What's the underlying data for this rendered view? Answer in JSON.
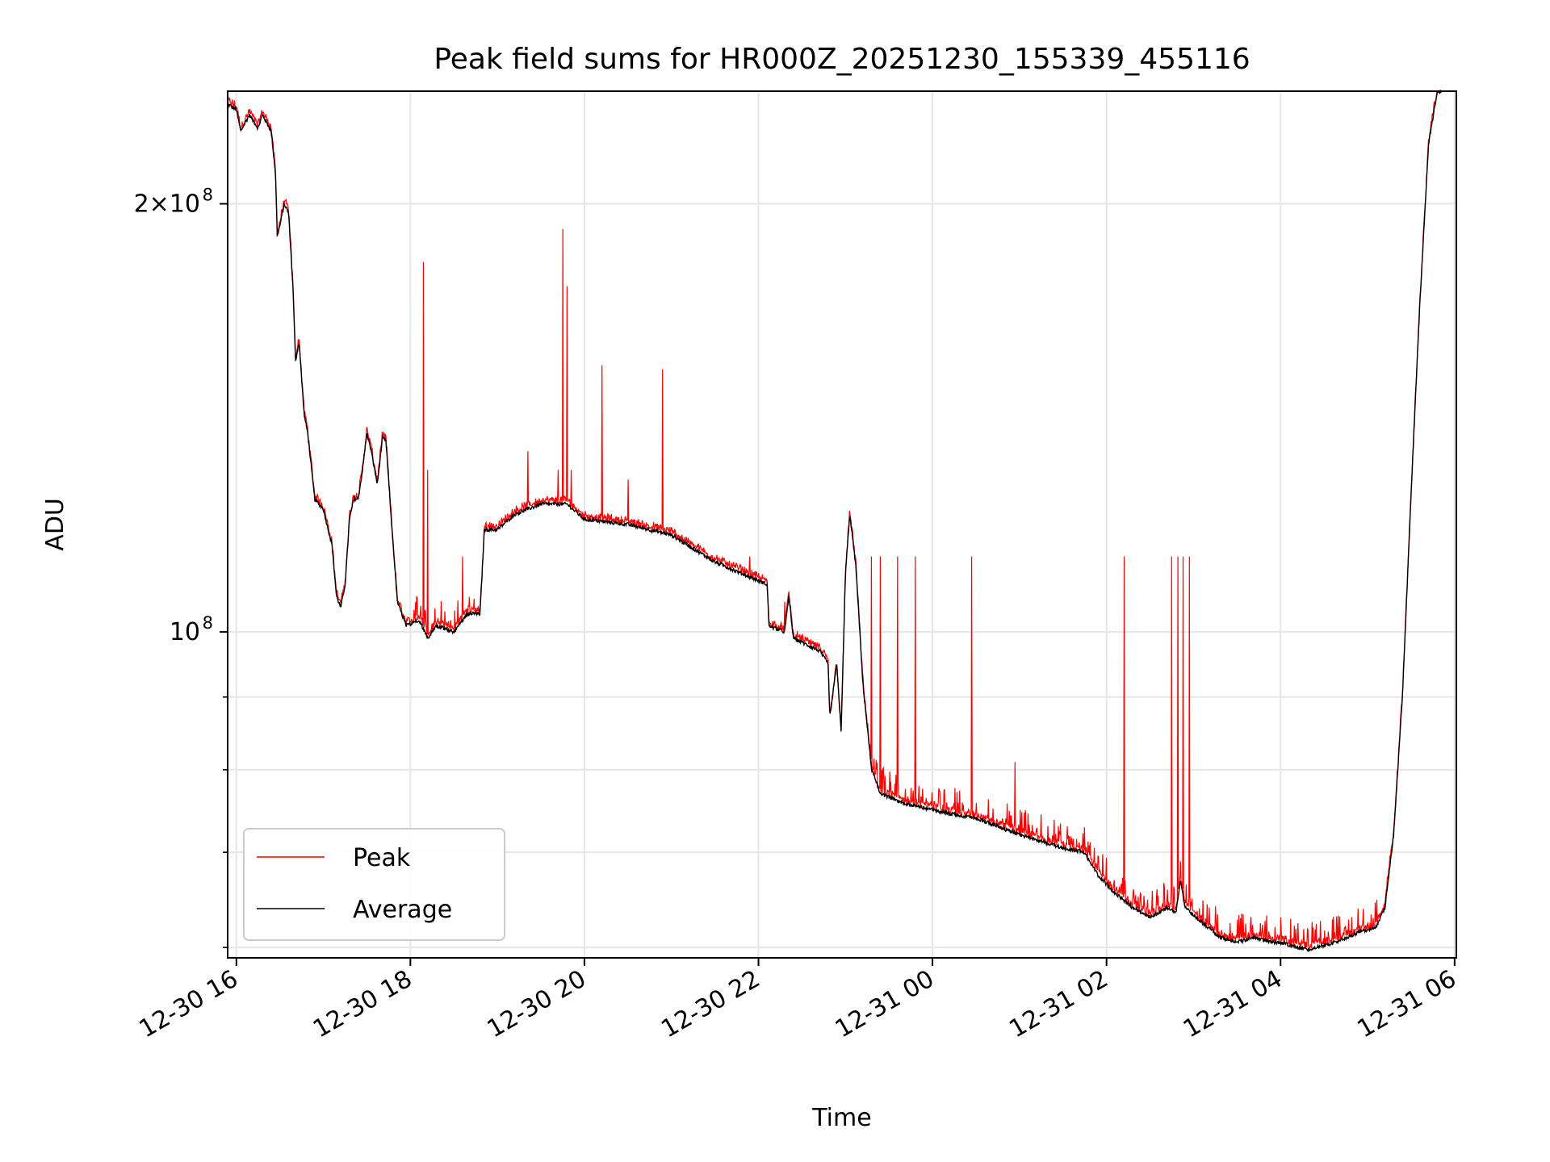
{
  "chart_data": {
    "type": "line",
    "title": "Peak field sums for HR000Z_20251230_155339_455116",
    "xlabel": "Time",
    "ylabel": "ADU",
    "x_unit": "hours since 2025-12-30 00:00",
    "xlim": [
      15.9,
      30.02
    ],
    "ylim_log": [
      59000000.0,
      240000000.0
    ],
    "y_scale": "log",
    "grid": true,
    "legend_position": "lower-left",
    "x_ticks": [
      {
        "value": 16,
        "label": "12-30 16"
      },
      {
        "value": 18,
        "label": "12-30 18"
      },
      {
        "value": 20,
        "label": "12-30 20"
      },
      {
        "value": 22,
        "label": "12-30 22"
      },
      {
        "value": 24,
        "label": "12-31 00"
      },
      {
        "value": 26,
        "label": "12-31 02"
      },
      {
        "value": 28,
        "label": "12-31 04"
      },
      {
        "value": 30,
        "label": "12-31 06"
      }
    ],
    "y_major_ticks": [
      {
        "value": 100000000,
        "base": "10",
        "exp": "8"
      },
      {
        "value": 200000000,
        "base": "2×10",
        "exp": "8"
      }
    ],
    "y_minor_ticks": [
      60000000,
      70000000,
      80000000,
      90000000
    ],
    "series": [
      {
        "name": "Peak",
        "color": "#ff0000"
      },
      {
        "name": "Average",
        "color": "#000000"
      }
    ],
    "average_points": [
      [
        15.9,
        235000000.0
      ],
      [
        16.0,
        233000000.0
      ],
      [
        16.05,
        225000000.0
      ],
      [
        16.15,
        231000000.0
      ],
      [
        16.25,
        226000000.0
      ],
      [
        16.3,
        231000000.0
      ],
      [
        16.4,
        225000000.0
      ],
      [
        16.45,
        210000000.0
      ],
      [
        16.47,
        190000000.0
      ],
      [
        16.5,
        193000000.0
      ],
      [
        16.55,
        200000000.0
      ],
      [
        16.6,
        197000000.0
      ],
      [
        16.65,
        175000000.0
      ],
      [
        16.68,
        155000000.0
      ],
      [
        16.72,
        160000000.0
      ],
      [
        16.78,
        142000000.0
      ],
      [
        16.82,
        138000000.0
      ],
      [
        16.9,
        124000000.0
      ],
      [
        17.0,
        122000000.0
      ],
      [
        17.1,
        115000000.0
      ],
      [
        17.15,
        106000000.0
      ],
      [
        17.2,
        104000000.0
      ],
      [
        17.25,
        108000000.0
      ],
      [
        17.3,
        120000000.0
      ],
      [
        17.35,
        124000000.0
      ],
      [
        17.4,
        124000000.0
      ],
      [
        17.45,
        130000000.0
      ],
      [
        17.5,
        138000000.0
      ],
      [
        17.55,
        134000000.0
      ],
      [
        17.62,
        127000000.0
      ],
      [
        17.68,
        137000000.0
      ],
      [
        17.72,
        136000000.0
      ],
      [
        17.78,
        120000000.0
      ],
      [
        17.85,
        105000000.0
      ],
      [
        17.95,
        101000000.0
      ],
      [
        18.1,
        102000000.0
      ],
      [
        18.2,
        99000000.0
      ],
      [
        18.3,
        101000000.0
      ],
      [
        18.5,
        100000000.0
      ],
      [
        18.65,
        103000000.0
      ],
      [
        18.8,
        103000000.0
      ],
      [
        18.85,
        118000000.0
      ],
      [
        19.0,
        118000000.0
      ],
      [
        19.2,
        121000000.0
      ],
      [
        19.5,
        123000000.0
      ],
      [
        19.8,
        123000000.0
      ],
      [
        20.0,
        120000000.0
      ],
      [
        20.5,
        119000000.0
      ],
      [
        21.0,
        117000000.0
      ],
      [
        21.5,
        112000000.0
      ],
      [
        22.1,
        108000000.0
      ],
      [
        22.12,
        101000000.0
      ],
      [
        22.3,
        100000000.0
      ],
      [
        22.35,
        106000000.0
      ],
      [
        22.4,
        99000000.0
      ],
      [
        22.7,
        97000000.0
      ],
      [
        22.8,
        95000000.0
      ],
      [
        22.82,
        87000000.0
      ],
      [
        22.9,
        95000000.0
      ],
      [
        22.95,
        85000000.0
      ],
      [
        23.0,
        110000000.0
      ],
      [
        23.05,
        121000000.0
      ],
      [
        23.12,
        111000000.0
      ],
      [
        23.2,
        92000000.0
      ],
      [
        23.3,
        80000000.0
      ],
      [
        23.4,
        77000000.0
      ],
      [
        23.6,
        76000000.0
      ],
      [
        23.8,
        75500000.0
      ],
      [
        24.2,
        74500000.0
      ],
      [
        24.5,
        74000000.0
      ],
      [
        25.0,
        72000000.0
      ],
      [
        25.5,
        70500000.0
      ],
      [
        25.75,
        70000000.0
      ],
      [
        25.8,
        69000000.0
      ],
      [
        25.9,
        67500000.0
      ],
      [
        26.1,
        65500000.0
      ],
      [
        26.3,
        64000000.0
      ],
      [
        26.5,
        63000000.0
      ],
      [
        26.7,
        64000000.0
      ],
      [
        26.8,
        63500000.0
      ],
      [
        26.85,
        67000000.0
      ],
      [
        26.9,
        64000000.0
      ],
      [
        27.1,
        62500000.0
      ],
      [
        27.3,
        61000000.0
      ],
      [
        27.5,
        60500000.0
      ],
      [
        27.7,
        61000000.0
      ],
      [
        27.9,
        60500000.0
      ],
      [
        28.0,
        60500000.0
      ],
      [
        28.3,
        59800000.0
      ],
      [
        28.6,
        60400000.0
      ],
      [
        28.9,
        61500000.0
      ],
      [
        29.1,
        62000000.0
      ],
      [
        29.2,
        64000000.0
      ],
      [
        29.3,
        72000000.0
      ],
      [
        29.4,
        90000000.0
      ],
      [
        29.5,
        125000000.0
      ],
      [
        29.6,
        170000000.0
      ],
      [
        29.7,
        220000000.0
      ],
      [
        29.8,
        240000000.0
      ],
      [
        29.85,
        240000000.0
      ]
    ],
    "peak_spikes": [
      [
        18.15,
        182000000.0
      ],
      [
        18.2,
        130000000.0
      ],
      [
        18.6,
        113000000.0
      ],
      [
        19.35,
        134000000.0
      ],
      [
        19.7,
        130000000.0
      ],
      [
        19.75,
        192000000.0
      ],
      [
        19.8,
        175000000.0
      ],
      [
        19.85,
        130000000.0
      ],
      [
        20.2,
        154000000.0
      ],
      [
        20.5,
        128000000.0
      ],
      [
        20.9,
        153000000.0
      ],
      [
        21.9,
        113000000.0
      ],
      [
        22.3,
        105000000.0
      ],
      [
        23.3,
        113000000.0
      ],
      [
        23.4,
        113000000.0
      ],
      [
        23.6,
        113000000.0
      ],
      [
        23.8,
        113000000.0
      ],
      [
        24.45,
        113000000.0
      ],
      [
        24.95,
        81000000.0
      ],
      [
        26.2,
        113000000.0
      ],
      [
        26.75,
        113000000.0
      ],
      [
        26.82,
        113000000.0
      ],
      [
        26.88,
        113000000.0
      ],
      [
        26.95,
        113000000.0
      ]
    ]
  }
}
